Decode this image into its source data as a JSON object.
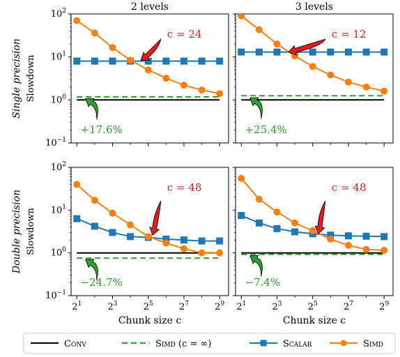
{
  "chart_data": [
    {
      "type": "line",
      "column_title": "2 levels",
      "row_label": "Single precision",
      "ylabel": "Slowdown",
      "xlabel": "",
      "yscale": "log",
      "ylim": [
        0.1,
        100
      ],
      "xscale": "log2",
      "xlim": [
        1.6,
        724
      ],
      "x": [
        2,
        4,
        8,
        16,
        32,
        64,
        128,
        256,
        512
      ],
      "series": [
        {
          "name": "Conv",
          "key": "conv",
          "values": [
            1,
            1,
            1,
            1,
            1,
            1,
            1,
            1,
            1
          ]
        },
        {
          "name": "Simd (c = ∞)",
          "key": "simd_inf",
          "values": [
            1.176,
            1.176,
            1.176,
            1.176,
            1.176,
            1.176,
            1.176,
            1.176,
            1.176
          ]
        },
        {
          "name": "Scalar",
          "key": "scalar",
          "values": [
            8,
            8,
            8,
            8,
            8,
            8,
            8,
            8,
            8
          ]
        },
        {
          "name": "Simd",
          "key": "simd",
          "values": [
            70,
            36,
            16.5,
            8.4,
            5.0,
            3.2,
            2.2,
            1.7,
            1.4
          ]
        }
      ],
      "annotations": [
        {
          "text": "c = 24",
          "color": "#e41a1c",
          "target_x": 24,
          "target_y": 8.3,
          "text_x": 90,
          "text_y": 40
        },
        {
          "text": "+17.6%",
          "color": "#2ca02c",
          "target_x": 2.8,
          "target_y": 1.07,
          "text_x": 2.8,
          "text_y": 0.24
        }
      ],
      "grid": false
    },
    {
      "type": "line",
      "column_title": "3 levels",
      "row_label": "",
      "ylabel": "",
      "xlabel": "",
      "yscale": "log",
      "ylim": [
        0.1,
        100
      ],
      "xscale": "log2",
      "xlim": [
        1.6,
        724
      ],
      "x": [
        2,
        4,
        8,
        16,
        32,
        64,
        128,
        256,
        512
      ],
      "series": [
        {
          "name": "Conv",
          "key": "conv",
          "values": [
            1,
            1,
            1,
            1,
            1,
            1,
            1,
            1,
            1
          ]
        },
        {
          "name": "Simd (c = ∞)",
          "key": "simd_inf",
          "values": [
            1.254,
            1.254,
            1.254,
            1.254,
            1.254,
            1.254,
            1.254,
            1.254,
            1.254
          ]
        },
        {
          "name": "Scalar",
          "key": "scalar",
          "values": [
            13,
            13,
            13,
            13,
            13,
            13,
            13,
            13,
            13
          ]
        },
        {
          "name": "Simd",
          "key": "simd",
          "values": [
            90,
            43,
            20,
            10.5,
            6.0,
            3.8,
            2.6,
            2.0,
            1.6
          ]
        }
      ],
      "annotations": [
        {
          "text": "c = 12",
          "color": "#e41a1c",
          "target_x": 12.5,
          "target_y": 13,
          "text_x": 90,
          "text_y": 40
        },
        {
          "text": "+25.4%",
          "color": "#2ca02c",
          "target_x": 2.8,
          "target_y": 1.12,
          "text_x": 2.8,
          "text_y": 0.24
        }
      ],
      "grid": false
    },
    {
      "type": "line",
      "column_title": "",
      "row_label": "Double precision",
      "ylabel": "Slowdown",
      "xlabel": "Chunk size c",
      "yscale": "log",
      "ylim": [
        0.1,
        100
      ],
      "xscale": "log2",
      "xlim": [
        1.6,
        724
      ],
      "x": [
        2,
        4,
        8,
        16,
        32,
        64,
        128,
        256,
        512
      ],
      "series": [
        {
          "name": "Conv",
          "key": "conv",
          "values": [
            1,
            1,
            1,
            1,
            1,
            1,
            1,
            1,
            1
          ]
        },
        {
          "name": "Simd (c = ∞)",
          "key": "simd_inf",
          "values": [
            0.753,
            0.753,
            0.753,
            0.753,
            0.753,
            0.753,
            0.753,
            0.753,
            0.753
          ]
        },
        {
          "name": "Scalar",
          "key": "scalar",
          "values": [
            6.3,
            4.2,
            3.0,
            2.4,
            2.3,
            2.1,
            2.0,
            1.9,
            1.9
          ]
        },
        {
          "name": "Simd",
          "key": "simd",
          "values": [
            40,
            17,
            8.5,
            4.5,
            2.4,
            1.7,
            1.25,
            1.0,
            1.0
          ]
        }
      ],
      "annotations": [
        {
          "text": "c = 48",
          "color": "#e41a1c",
          "target_x": 38,
          "target_y": 2.6,
          "text_x": 90,
          "text_y": 40
        },
        {
          "text": "−24.7%",
          "color": "#2ca02c",
          "target_x": 2.8,
          "target_y": 0.7,
          "text_x": 2.8,
          "text_y": 0.24
        }
      ],
      "grid": false
    },
    {
      "type": "line",
      "column_title": "",
      "row_label": "",
      "ylabel": "",
      "xlabel": "Chunk size c",
      "yscale": "log",
      "ylim": [
        0.1,
        100
      ],
      "xscale": "log2",
      "xlim": [
        1.6,
        724
      ],
      "x": [
        2,
        4,
        8,
        16,
        32,
        64,
        128,
        256,
        512
      ],
      "series": [
        {
          "name": "Conv",
          "key": "conv",
          "values": [
            1,
            1,
            1,
            1,
            1,
            1,
            1,
            1,
            1
          ]
        },
        {
          "name": "Simd (c = ∞)",
          "key": "simd_inf",
          "values": [
            0.926,
            0.926,
            0.926,
            0.926,
            0.926,
            0.926,
            0.926,
            0.926,
            0.926
          ]
        },
        {
          "name": "Scalar",
          "key": "scalar",
          "values": [
            7.5,
            5.0,
            3.7,
            3.1,
            2.8,
            2.6,
            2.5,
            2.45,
            2.4
          ]
        },
        {
          "name": "Simd",
          "key": "simd",
          "values": [
            55,
            18,
            9.0,
            5.0,
            3.3,
            2.1,
            1.5,
            1.2,
            1.15
          ]
        }
      ],
      "annotations": [
        {
          "text": "c = 48",
          "color": "#e41a1c",
          "target_x": 40,
          "target_y": 2.8,
          "text_x": 90,
          "text_y": 40
        },
        {
          "text": "−7.4%",
          "color": "#2ca02c",
          "target_x": 2.8,
          "target_y": 0.86,
          "text_x": 2.8,
          "text_y": 0.24
        }
      ],
      "grid": false
    }
  ],
  "ticks": {
    "y": [
      {
        "value": 0.1,
        "base": "10",
        "exp": "−1"
      },
      {
        "value": 1,
        "base": "10",
        "exp": "0"
      },
      {
        "value": 10,
        "base": "10",
        "exp": "1"
      },
      {
        "value": 100,
        "base": "10",
        "exp": "2"
      }
    ],
    "x": [
      {
        "value": 2,
        "base": "2",
        "exp": "1"
      },
      {
        "value": 8,
        "base": "2",
        "exp": "3"
      },
      {
        "value": 32,
        "base": "2",
        "exp": "5"
      },
      {
        "value": 128,
        "base": "2",
        "exp": "7"
      },
      {
        "value": 512,
        "base": "2",
        "exp": "9"
      }
    ],
    "x_minor": [
      4,
      16,
      64,
      256
    ]
  },
  "legend": {
    "placement": "bottom",
    "items": [
      {
        "key": "conv",
        "label": "Conv",
        "suffix": ""
      },
      {
        "key": "simd_inf",
        "label": "Simd",
        "suffix": " (c = ∞)"
      },
      {
        "key": "scalar",
        "label": "Scalar",
        "suffix": ""
      },
      {
        "key": "simd",
        "label": "Simd",
        "suffix": ""
      }
    ]
  },
  "colors": {
    "conv": "#000000",
    "simd_inf": "#2ca02c",
    "scalar": "#1f77b4",
    "simd": "#ff7f0e",
    "red_arrow": "#e41a1c",
    "green_arrow": "#2ca02c"
  }
}
